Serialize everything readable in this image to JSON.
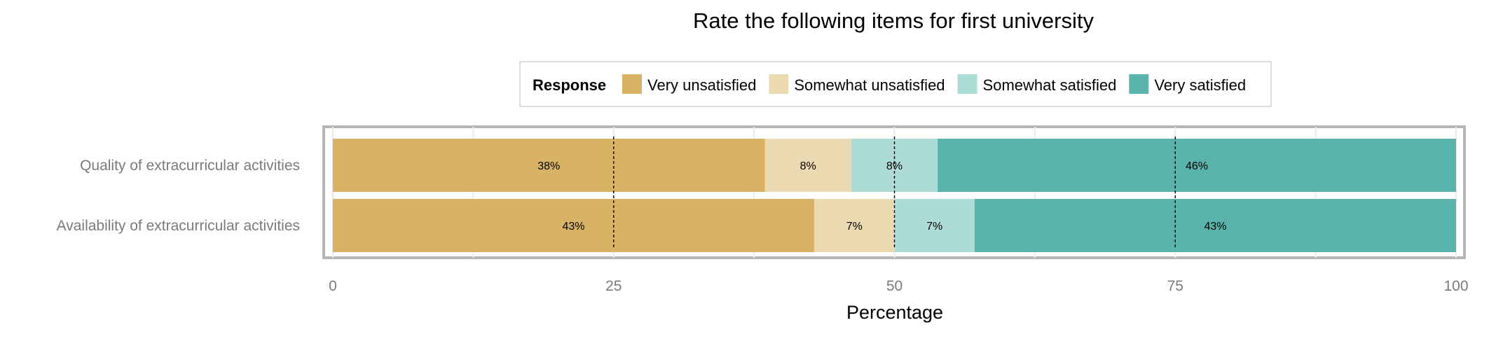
{
  "chart_data": {
    "type": "bar",
    "orientation": "horizontal",
    "stacked": true,
    "title": "Rate the following items for first university",
    "xlabel": "Percentage",
    "ylabel": "",
    "xlim": [
      0,
      100
    ],
    "x_ticks": [
      0,
      25,
      50,
      75,
      100
    ],
    "reference_lines": [
      25,
      50,
      75
    ],
    "legend": {
      "title": "Response",
      "placement": "top"
    },
    "categories": [
      "Quality of extracurricular activities",
      "Availability of extracurricular activities"
    ],
    "series": [
      {
        "name": "Very unsatisfied",
        "color": "#D8B365",
        "values": [
          38.46,
          42.86
        ],
        "labels": [
          "38%",
          "43%"
        ]
      },
      {
        "name": "Somewhat unsatisfied",
        "color": "#EBD9B2",
        "values": [
          7.69,
          7.14
        ],
        "labels": [
          "8%",
          "7%"
        ]
      },
      {
        "name": "Somewhat satisfied",
        "color": "#ADDBD6",
        "values": [
          7.69,
          7.14
        ],
        "labels": [
          "8%",
          "7%"
        ]
      },
      {
        "name": "Very satisfied",
        "color": "#5AB4AC",
        "values": [
          46.16,
          42.86
        ],
        "labels": [
          "46%",
          "43%"
        ]
      }
    ],
    "grid": true
  }
}
